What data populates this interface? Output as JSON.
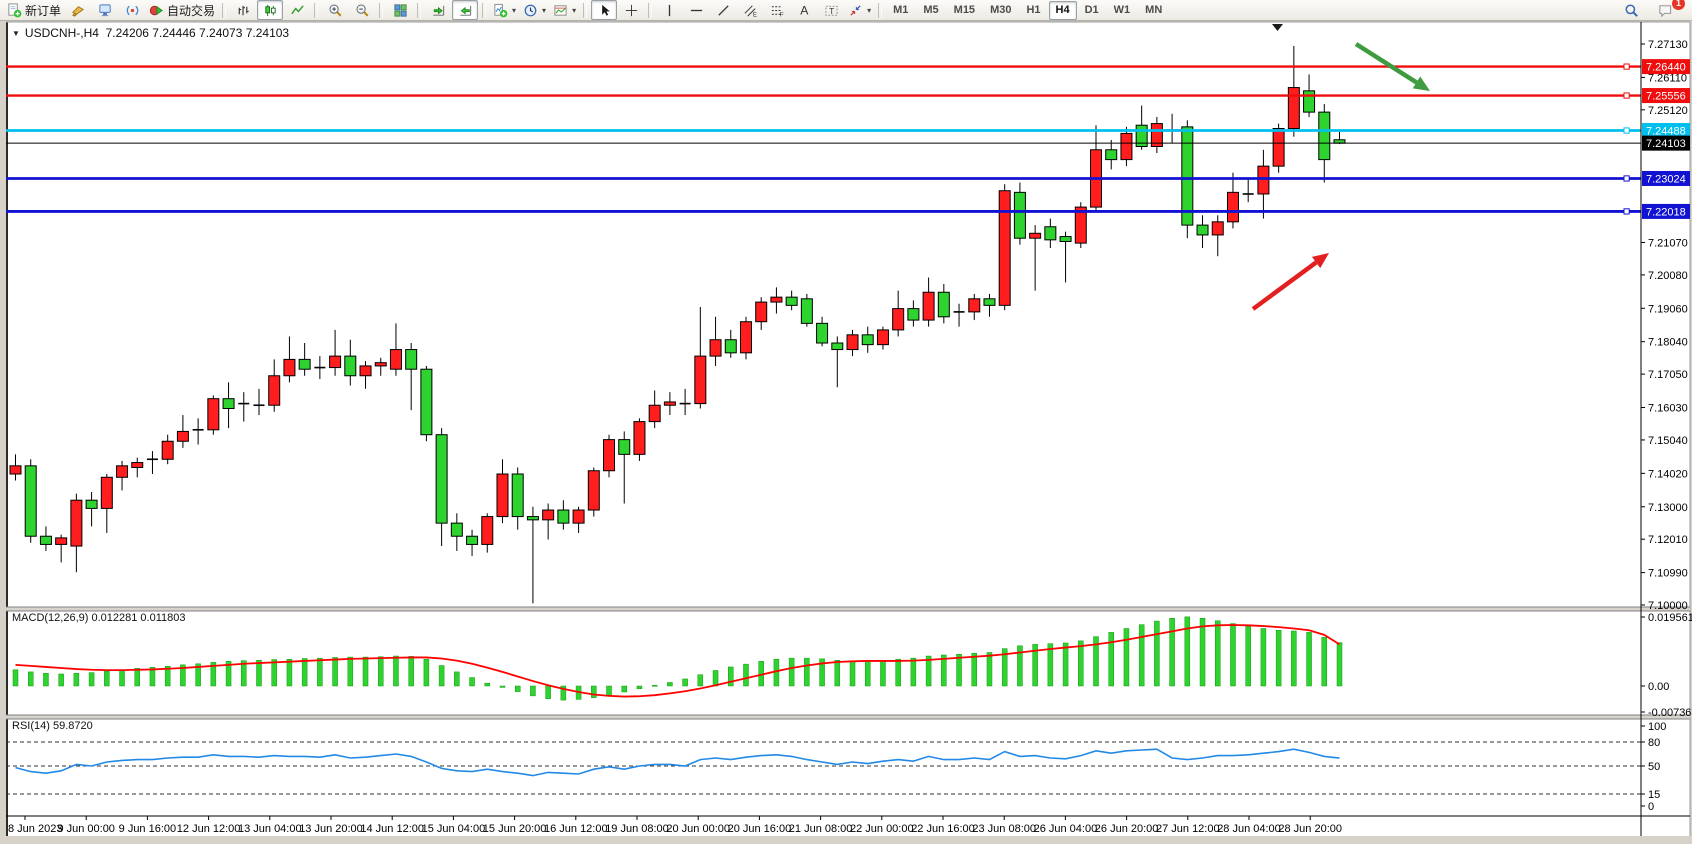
{
  "toolbar": {
    "items": [
      {
        "icon": "new-order-icon",
        "label": "新订单"
      },
      {
        "icon": "styler-icon"
      },
      {
        "icon": "market-watch-icon"
      },
      {
        "icon": "signals-icon"
      },
      {
        "icon": "autotrading-icon",
        "label": "自动交易"
      },
      {
        "sep": true
      },
      {
        "icon": "bar-chart-icon"
      },
      {
        "icon": "candlestick-icon",
        "active": true
      },
      {
        "icon": "line-chart-icon"
      },
      {
        "sep": true
      },
      {
        "icon": "zoom-in-icon"
      },
      {
        "icon": "zoom-out-icon"
      },
      {
        "sep": true
      },
      {
        "icon": "tile-windows-icon"
      },
      {
        "sep": true
      },
      {
        "icon": "auto-scroll-icon"
      },
      {
        "icon": "chart-shift-icon",
        "active": true
      },
      {
        "sep": true
      },
      {
        "icon": "indicators-icon",
        "dropdown": true
      },
      {
        "icon": "periods-icon",
        "dropdown": true
      },
      {
        "icon": "templates-icon",
        "dropdown": true
      },
      {
        "sep": true
      },
      {
        "icon": "cursor-icon",
        "active": true
      },
      {
        "icon": "crosshair-icon"
      },
      {
        "sep": true
      },
      {
        "icon": "vline-icon"
      },
      {
        "icon": "hline-icon"
      },
      {
        "icon": "trendline-icon"
      },
      {
        "icon": "channel-icon"
      },
      {
        "icon": "fibonacci-icon"
      },
      {
        "icon": "text-icon"
      },
      {
        "icon": "label-icon"
      },
      {
        "icon": "arrows-icon",
        "dropdown": true
      },
      {
        "sep": true
      }
    ],
    "timeframes": [
      "M1",
      "M5",
      "M15",
      "M30",
      "H1",
      "H4",
      "D1",
      "W1",
      "MN"
    ],
    "active_timeframe": "H4",
    "chat_badge": "1"
  },
  "chart": {
    "symbol_line": "USDCNH-,H4  7.24206 7.24446 7.24073 7.24103",
    "macd_label": "MACD(12,26,9) 0.012281 0.011803",
    "rsi_label": "RSI(14) 59.8720"
  },
  "chart_data": {
    "type": "candlestick",
    "symbol": "USDCNH-",
    "timeframe": "H4",
    "ohlc_current": {
      "open": 7.24206,
      "high": 7.24446,
      "low": 7.24073,
      "close": 7.24103
    },
    "bull_color": "#ff1d1d",
    "bear_color": "#2fd32f",
    "candles": [
      [
        7.14,
        7.146,
        7.138,
        7.1425
      ],
      [
        7.1425,
        7.1445,
        7.119,
        7.121
      ],
      [
        7.121,
        7.124,
        7.1165,
        7.1185
      ],
      [
        7.1185,
        7.1215,
        7.113,
        7.1205
      ],
      [
        7.118,
        7.134,
        7.11,
        7.132
      ],
      [
        7.132,
        7.1345,
        7.124,
        7.1295
      ],
      [
        7.1295,
        7.14,
        7.122,
        7.139
      ],
      [
        7.139,
        7.144,
        7.135,
        7.1425
      ],
      [
        7.142,
        7.145,
        7.139,
        7.1435
      ],
      [
        7.144,
        7.147,
        7.14,
        7.1445
      ],
      [
        7.1445,
        7.152,
        7.143,
        7.15
      ],
      [
        7.15,
        7.158,
        7.148,
        7.153
      ],
      [
        7.153,
        7.157,
        7.149,
        7.1535
      ],
      [
        7.1535,
        7.164,
        7.152,
        7.163
      ],
      [
        7.163,
        7.168,
        7.154,
        7.16
      ],
      [
        7.161,
        7.165,
        7.156,
        7.1615
      ],
      [
        7.1615,
        7.166,
        7.158,
        7.161
      ],
      [
        7.161,
        7.175,
        7.159,
        7.17
      ],
      [
        7.17,
        7.182,
        7.168,
        7.175
      ],
      [
        7.175,
        7.18,
        7.17,
        7.172
      ],
      [
        7.172,
        7.176,
        7.169,
        7.1725
      ],
      [
        7.1725,
        7.184,
        7.17,
        7.176
      ],
      [
        7.176,
        7.181,
        7.167,
        7.17
      ],
      [
        7.17,
        7.1745,
        7.166,
        7.173
      ],
      [
        7.173,
        7.1755,
        7.17,
        7.174
      ],
      [
        7.172,
        7.186,
        7.17,
        7.178
      ],
      [
        7.178,
        7.18,
        7.1595,
        7.172
      ],
      [
        7.172,
        7.173,
        7.15,
        7.152
      ],
      [
        7.152,
        7.154,
        7.118,
        7.125
      ],
      [
        7.125,
        7.128,
        7.1165,
        7.121
      ],
      [
        7.121,
        7.123,
        7.115,
        7.1185
      ],
      [
        7.1185,
        7.128,
        7.116,
        7.127
      ],
      [
        7.127,
        7.1445,
        7.125,
        7.14
      ],
      [
        7.14,
        7.142,
        7.123,
        7.127
      ],
      [
        7.127,
        7.13,
        7.1005,
        7.126
      ],
      [
        7.126,
        7.131,
        7.12,
        7.129
      ],
      [
        7.129,
        7.132,
        7.123,
        7.125
      ],
      [
        7.125,
        7.13,
        7.122,
        7.129
      ],
      [
        7.129,
        7.142,
        7.127,
        7.141
      ],
      [
        7.141,
        7.152,
        7.139,
        7.1505
      ],
      [
        7.1505,
        7.153,
        7.131,
        7.146
      ],
      [
        7.146,
        7.157,
        7.144,
        7.156
      ],
      [
        7.156,
        7.1655,
        7.154,
        7.161
      ],
      [
        7.161,
        7.165,
        7.158,
        7.162
      ],
      [
        7.162,
        7.166,
        7.158,
        7.1615
      ],
      [
        7.1615,
        7.191,
        7.16,
        7.176
      ],
      [
        7.176,
        7.188,
        7.173,
        7.181
      ],
      [
        7.181,
        7.184,
        7.1755,
        7.177
      ],
      [
        7.177,
        7.188,
        7.175,
        7.1865
      ],
      [
        7.1865,
        7.194,
        7.184,
        7.1925
      ],
      [
        7.1925,
        7.197,
        7.189,
        7.194
      ],
      [
        7.194,
        7.196,
        7.19,
        7.1915
      ],
      [
        7.1935,
        7.195,
        7.185,
        7.186
      ],
      [
        7.186,
        7.188,
        7.179,
        7.18
      ],
      [
        7.18,
        7.182,
        7.1665,
        7.178
      ],
      [
        7.178,
        7.184,
        7.176,
        7.1825
      ],
      [
        7.1825,
        7.185,
        7.177,
        7.1795
      ],
      [
        7.1795,
        7.185,
        7.178,
        7.184
      ],
      [
        7.184,
        7.196,
        7.182,
        7.1905
      ],
      [
        7.1905,
        7.193,
        7.185,
        7.187
      ],
      [
        7.187,
        7.2,
        7.185,
        7.1955
      ],
      [
        7.1955,
        7.198,
        7.186,
        7.188
      ],
      [
        7.189,
        7.192,
        7.185,
        7.1895
      ],
      [
        7.1895,
        7.195,
        7.187,
        7.1935
      ],
      [
        7.1935,
        7.195,
        7.188,
        7.1915
      ],
      [
        7.1915,
        7.2285,
        7.19,
        7.2265
      ],
      [
        7.226,
        7.229,
        7.21,
        7.212
      ],
      [
        7.212,
        7.216,
        7.196,
        7.2135
      ],
      [
        7.2155,
        7.218,
        7.209,
        7.2115
      ],
      [
        7.2125,
        7.214,
        7.1985,
        7.211
      ],
      [
        7.2105,
        7.223,
        7.209,
        7.2215
      ],
      [
        7.2215,
        7.2465,
        7.22,
        7.239
      ],
      [
        7.239,
        7.242,
        7.233,
        7.236
      ],
      [
        7.236,
        7.246,
        7.234,
        7.244
      ],
      [
        7.2465,
        7.2525,
        7.239,
        7.24
      ],
      [
        7.24,
        7.249,
        7.238,
        7.247
      ],
      [
        7.2455,
        7.25,
        7.241,
        7.245
      ],
      [
        7.246,
        7.248,
        7.212,
        7.216
      ],
      [
        7.216,
        7.219,
        7.209,
        7.213
      ],
      [
        7.213,
        7.219,
        7.2065,
        7.217
      ],
      [
        7.217,
        7.232,
        7.215,
        7.226
      ],
      [
        7.226,
        7.23,
        7.223,
        7.2255
      ],
      [
        7.2255,
        7.239,
        7.218,
        7.234
      ],
      [
        7.234,
        7.247,
        7.232,
        7.2455
      ],
      [
        7.2455,
        7.2707,
        7.243,
        7.258
      ],
      [
        7.257,
        7.262,
        7.249,
        7.2505
      ],
      [
        7.2505,
        7.253,
        7.229,
        7.236
      ],
      [
        7.24206,
        7.24446,
        7.24073,
        7.24103
      ]
    ],
    "price_ticks": [
      "7.27130",
      "7.26110",
      "7.25120",
      "7.21070",
      "7.20080",
      "7.19060",
      "7.18040",
      "7.17050",
      "7.16030",
      "7.15040",
      "7.14020",
      "7.13000",
      "7.12010",
      "7.10990",
      "7.10000"
    ],
    "hlines": [
      {
        "price": 7.2644,
        "label": "7.26440",
        "color": "#ef0d0d",
        "width": 2.4,
        "handle": true
      },
      {
        "price": 7.25556,
        "label": "7.25556",
        "color": "#ef0d0d",
        "width": 2.4,
        "handle": true
      },
      {
        "price": 7.24488,
        "label": "7.24488",
        "color": "#00bfef",
        "width": 2.8,
        "handle": true
      },
      {
        "price": 7.24103,
        "label": "7.24103",
        "color": "#000000",
        "width": 1.0,
        "handle": false
      },
      {
        "price": 7.23024,
        "label": "7.23024",
        "color": "#1212d2",
        "width": 2.8,
        "handle": true
      },
      {
        "price": 7.22018,
        "label": "7.22018",
        "color": "#1212d2",
        "width": 2.8,
        "handle": true
      }
    ],
    "time_labels": [
      "8 Jun 2023",
      "9 Jun 00:00",
      "9 Jun 16:00",
      "12 Jun 12:00",
      "13 Jun 04:00",
      "13 Jun 20:00",
      "14 Jun 12:00",
      "15 Jun 04:00",
      "15 Jun 20:00",
      "16 Jun 12:00",
      "19 Jun 08:00",
      "20 Jun 00:00",
      "20 Jun 16:00",
      "21 Jun 08:00",
      "22 Jun 00:00",
      "22 Jun 16:00",
      "23 Jun 08:00",
      "26 Jun 04:00",
      "26 Jun 20:00",
      "27 Jun 12:00",
      "28 Jun 04:00",
      "28 Jun 20:00"
    ],
    "macd": {
      "params": "12,26,9",
      "value": 0.012281,
      "signal_value": 0.011803,
      "axis_ticks": [
        "0.019561",
        "0.00",
        "-0.007367"
      ],
      "hist_color": "#2fd32f",
      "signal_color": "#ff0000",
      "hist": [
        0.0046,
        0.004,
        0.0036,
        0.0034,
        0.0036,
        0.0038,
        0.0042,
        0.0046,
        0.005,
        0.0053,
        0.0056,
        0.006,
        0.0063,
        0.0067,
        0.007,
        0.0072,
        0.0073,
        0.0075,
        0.0076,
        0.0078,
        0.0079,
        0.0081,
        0.0082,
        0.0082,
        0.0083,
        0.0085,
        0.0084,
        0.0076,
        0.0058,
        0.004,
        0.0024,
        0.0008,
        -0.0004,
        -0.0016,
        -0.0028,
        -0.0036,
        -0.004,
        -0.0038,
        -0.0033,
        -0.0026,
        -0.0017,
        -0.0008,
        0.0002,
        0.001,
        0.002,
        0.0032,
        0.0044,
        0.0054,
        0.0062,
        0.007,
        0.0076,
        0.0079,
        0.0079,
        0.0077,
        0.0073,
        0.0071,
        0.007,
        0.0072,
        0.0076,
        0.0079,
        0.0085,
        0.0088,
        0.009,
        0.0093,
        0.0095,
        0.0106,
        0.0114,
        0.0118,
        0.012,
        0.0122,
        0.0128,
        0.014,
        0.0152,
        0.0163,
        0.0174,
        0.0184,
        0.0192,
        0.0196,
        0.0192,
        0.0185,
        0.0177,
        0.0169,
        0.0163,
        0.0158,
        0.0156,
        0.0152,
        0.0138,
        0.0123
      ],
      "signal": [
        0.006,
        0.0057,
        0.0054,
        0.0051,
        0.0048,
        0.0046,
        0.0045,
        0.0045,
        0.0046,
        0.0047,
        0.0049,
        0.0051,
        0.0054,
        0.0057,
        0.006,
        0.0063,
        0.0065,
        0.0067,
        0.0069,
        0.0071,
        0.0073,
        0.0075,
        0.0077,
        0.0078,
        0.0079,
        0.008,
        0.0081,
        0.0081,
        0.0078,
        0.0072,
        0.0063,
        0.0052,
        0.004,
        0.0027,
        0.0014,
        0.0002,
        -0.0008,
        -0.0017,
        -0.0024,
        -0.0028,
        -0.003,
        -0.0029,
        -0.0026,
        -0.0021,
        -0.0015,
        -0.0007,
        0.0002,
        0.0012,
        0.0022,
        0.0032,
        0.0042,
        0.0051,
        0.0058,
        0.0064,
        0.0068,
        0.007,
        0.0071,
        0.0071,
        0.0071,
        0.0072,
        0.0074,
        0.0077,
        0.008,
        0.0083,
        0.0086,
        0.009,
        0.0095,
        0.01,
        0.0105,
        0.0109,
        0.0113,
        0.0118,
        0.0124,
        0.0131,
        0.0139,
        0.0147,
        0.0155,
        0.0163,
        0.0169,
        0.0172,
        0.0173,
        0.0172,
        0.017,
        0.0167,
        0.0163,
        0.0158,
        0.0145,
        0.0118
      ]
    },
    "rsi": {
      "period": 14,
      "value": 59.872,
      "color": "#2289e6",
      "levels": [
        80,
        50,
        15
      ],
      "axis_ticks": [
        "100",
        "80",
        "50",
        "15",
        "0"
      ],
      "series": [
        48,
        43,
        41,
        44,
        52,
        50,
        55,
        57,
        58,
        58,
        60,
        61,
        61,
        64,
        62,
        62,
        61,
        63,
        62,
        62,
        61,
        64,
        60,
        61,
        63,
        65,
        62,
        55,
        47,
        44,
        43,
        46,
        43,
        41,
        38,
        42,
        41,
        40,
        46,
        49,
        46,
        50,
        52,
        52,
        50,
        58,
        60,
        58,
        61,
        63,
        64,
        62,
        58,
        55,
        52,
        55,
        53,
        56,
        58,
        56,
        62,
        58,
        58,
        60,
        58,
        68,
        62,
        63,
        60,
        59,
        63,
        69,
        66,
        69,
        70,
        71,
        60,
        58,
        60,
        63,
        63,
        64,
        66,
        68,
        71,
        67,
        62,
        59.87
      ]
    },
    "arrows": [
      {
        "name": "red-arrow",
        "color": "#e32020",
        "from": [
          1253,
          309
        ],
        "to": [
          1329,
          253
        ]
      },
      {
        "name": "green-arrow",
        "color": "#3f9b3f",
        "from": [
          1356,
          44
        ],
        "to": [
          1430,
          91
        ]
      }
    ]
  }
}
